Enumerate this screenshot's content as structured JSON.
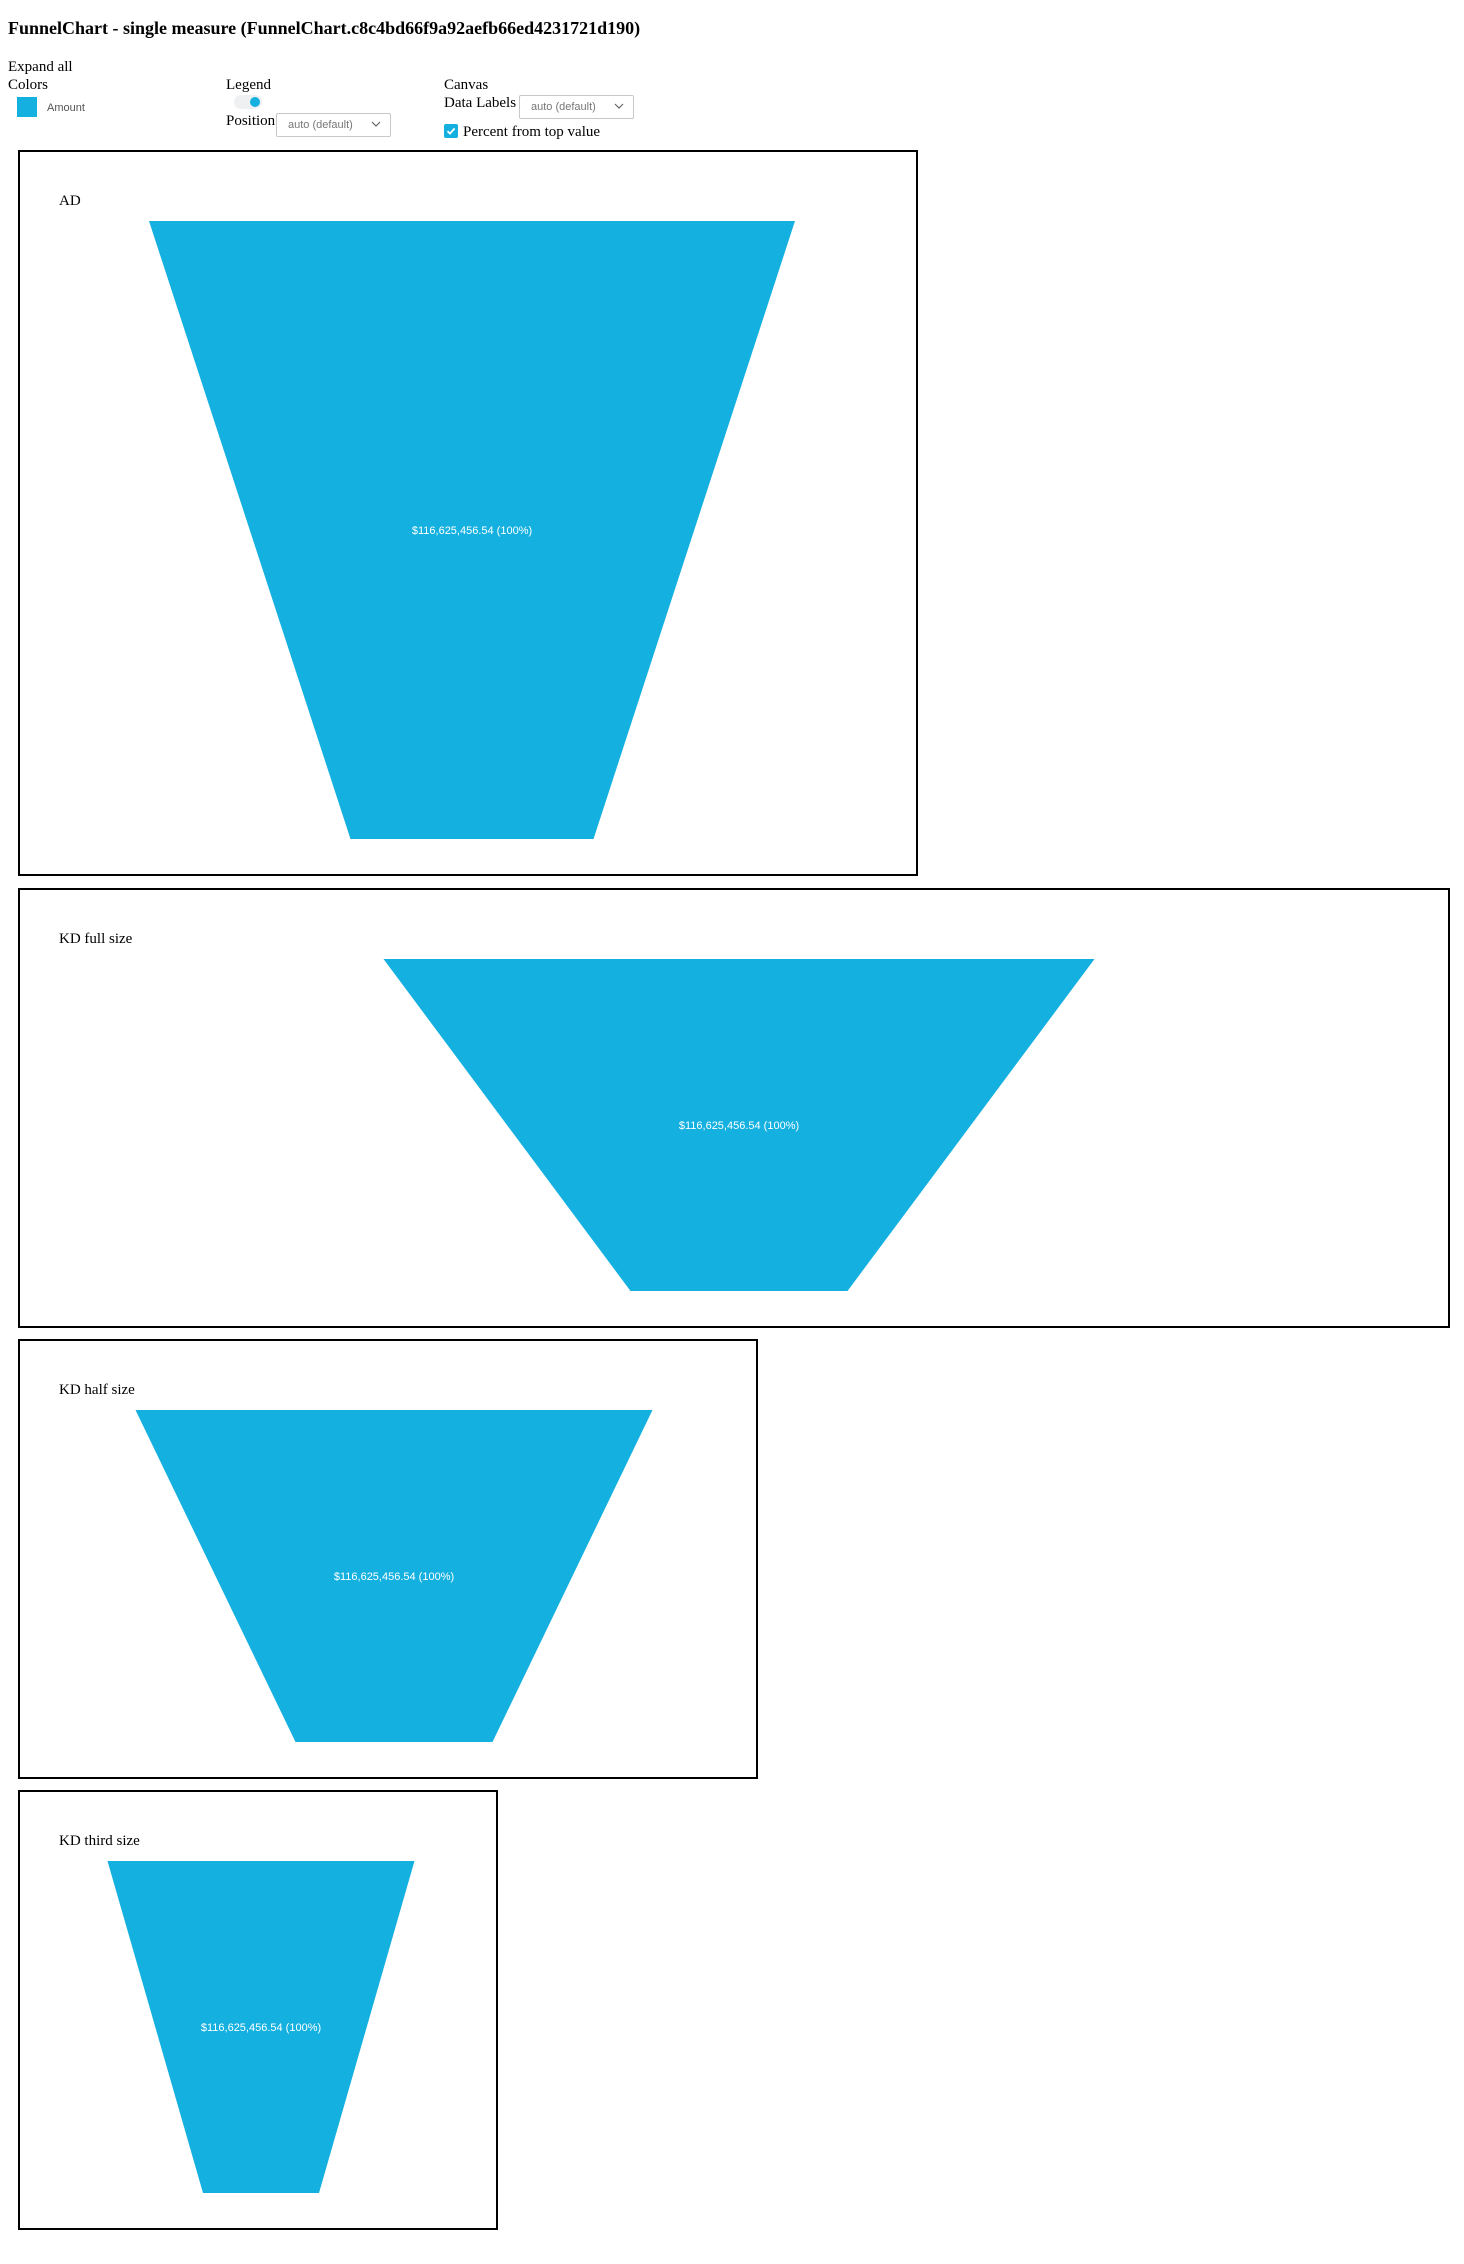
{
  "page": {
    "title": "FunnelChart - single measure (FunnelChart.c8c4bd66f9a92aefb66ed4231721d190)"
  },
  "controls": {
    "expand_all": "Expand all",
    "colors_label": "Colors",
    "legend_label": "Legend",
    "position_label": "Position",
    "position_value": "auto (default)",
    "canvas_label": "Canvas",
    "data_labels_label": "Data Labels",
    "data_labels_value": "auto (default)",
    "percent_label": "Percent from top value",
    "percent_checked": true,
    "legend_toggle_on": true
  },
  "legend": {
    "items": [
      {
        "label": "Amount",
        "color": "#13b0e0"
      }
    ]
  },
  "theme": {
    "accent": "#13b0e0",
    "funnel_fill": "#13b0e0",
    "label_color": "#ffffff"
  },
  "chart_data": [
    {
      "type": "funnel",
      "title": "AD",
      "series": [
        {
          "name": "Amount",
          "values": [
            116625456.54
          ]
        }
      ],
      "data_labels": [
        "$116,625,456.54 (100%)"
      ],
      "percent_of_top": [
        100
      ]
    },
    {
      "type": "funnel",
      "title": "KD full size",
      "series": [
        {
          "name": "Amount",
          "values": [
            116625456.54
          ]
        }
      ],
      "data_labels": [
        "$116,625,456.54 (100%)"
      ],
      "percent_of_top": [
        100
      ]
    },
    {
      "type": "funnel",
      "title": "KD half size",
      "series": [
        {
          "name": "Amount",
          "values": [
            116625456.54
          ]
        }
      ],
      "data_labels": [
        "$116,625,456.54 (100%)"
      ],
      "percent_of_top": [
        100
      ]
    },
    {
      "type": "funnel",
      "title": "KD third size",
      "series": [
        {
          "name": "Amount",
          "values": [
            116625456.54
          ]
        }
      ],
      "data_labels": [
        "$116,625,456.54 (100%)"
      ],
      "percent_of_top": [
        100
      ]
    }
  ]
}
